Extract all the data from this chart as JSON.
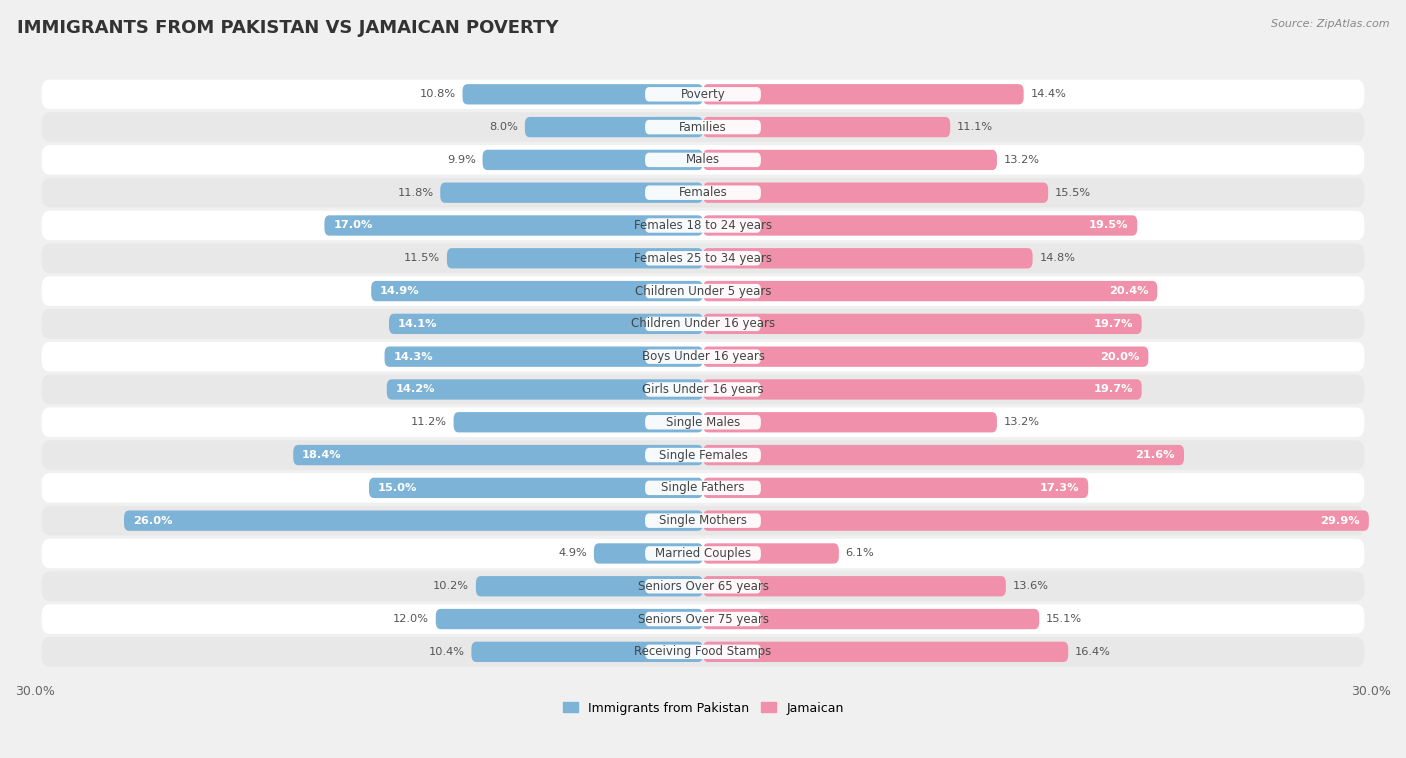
{
  "title": "IMMIGRANTS FROM PAKISTAN VS JAMAICAN POVERTY",
  "source": "Source: ZipAtlas.com",
  "categories": [
    "Poverty",
    "Families",
    "Males",
    "Females",
    "Females 18 to 24 years",
    "Females 25 to 34 years",
    "Children Under 5 years",
    "Children Under 16 years",
    "Boys Under 16 years",
    "Girls Under 16 years",
    "Single Males",
    "Single Females",
    "Single Fathers",
    "Single Mothers",
    "Married Couples",
    "Seniors Over 65 years",
    "Seniors Over 75 years",
    "Receiving Food Stamps"
  ],
  "pakistan_values": [
    10.8,
    8.0,
    9.9,
    11.8,
    17.0,
    11.5,
    14.9,
    14.1,
    14.3,
    14.2,
    11.2,
    18.4,
    15.0,
    26.0,
    4.9,
    10.2,
    12.0,
    10.4
  ],
  "jamaican_values": [
    14.4,
    11.1,
    13.2,
    15.5,
    19.5,
    14.8,
    20.4,
    19.7,
    20.0,
    19.7,
    13.2,
    21.6,
    17.3,
    29.9,
    6.1,
    13.6,
    15.1,
    16.4
  ],
  "pakistan_color": "#7eb3d8",
  "jamaican_color": "#f090aa",
  "pakistan_label": "Immigrants from Pakistan",
  "jamaican_label": "Jamaican",
  "xlim": 30.0,
  "bar_height": 0.62,
  "bg_color": "#f0f0f0",
  "row_color_even": "#ffffff",
  "row_color_odd": "#e8e8e8",
  "title_fontsize": 13,
  "label_fontsize": 8.5,
  "value_fontsize": 8.2,
  "legend_fontsize": 9,
  "source_fontsize": 8,
  "white_text_threshold_pak": 14.0,
  "white_text_threshold_jam": 17.0
}
